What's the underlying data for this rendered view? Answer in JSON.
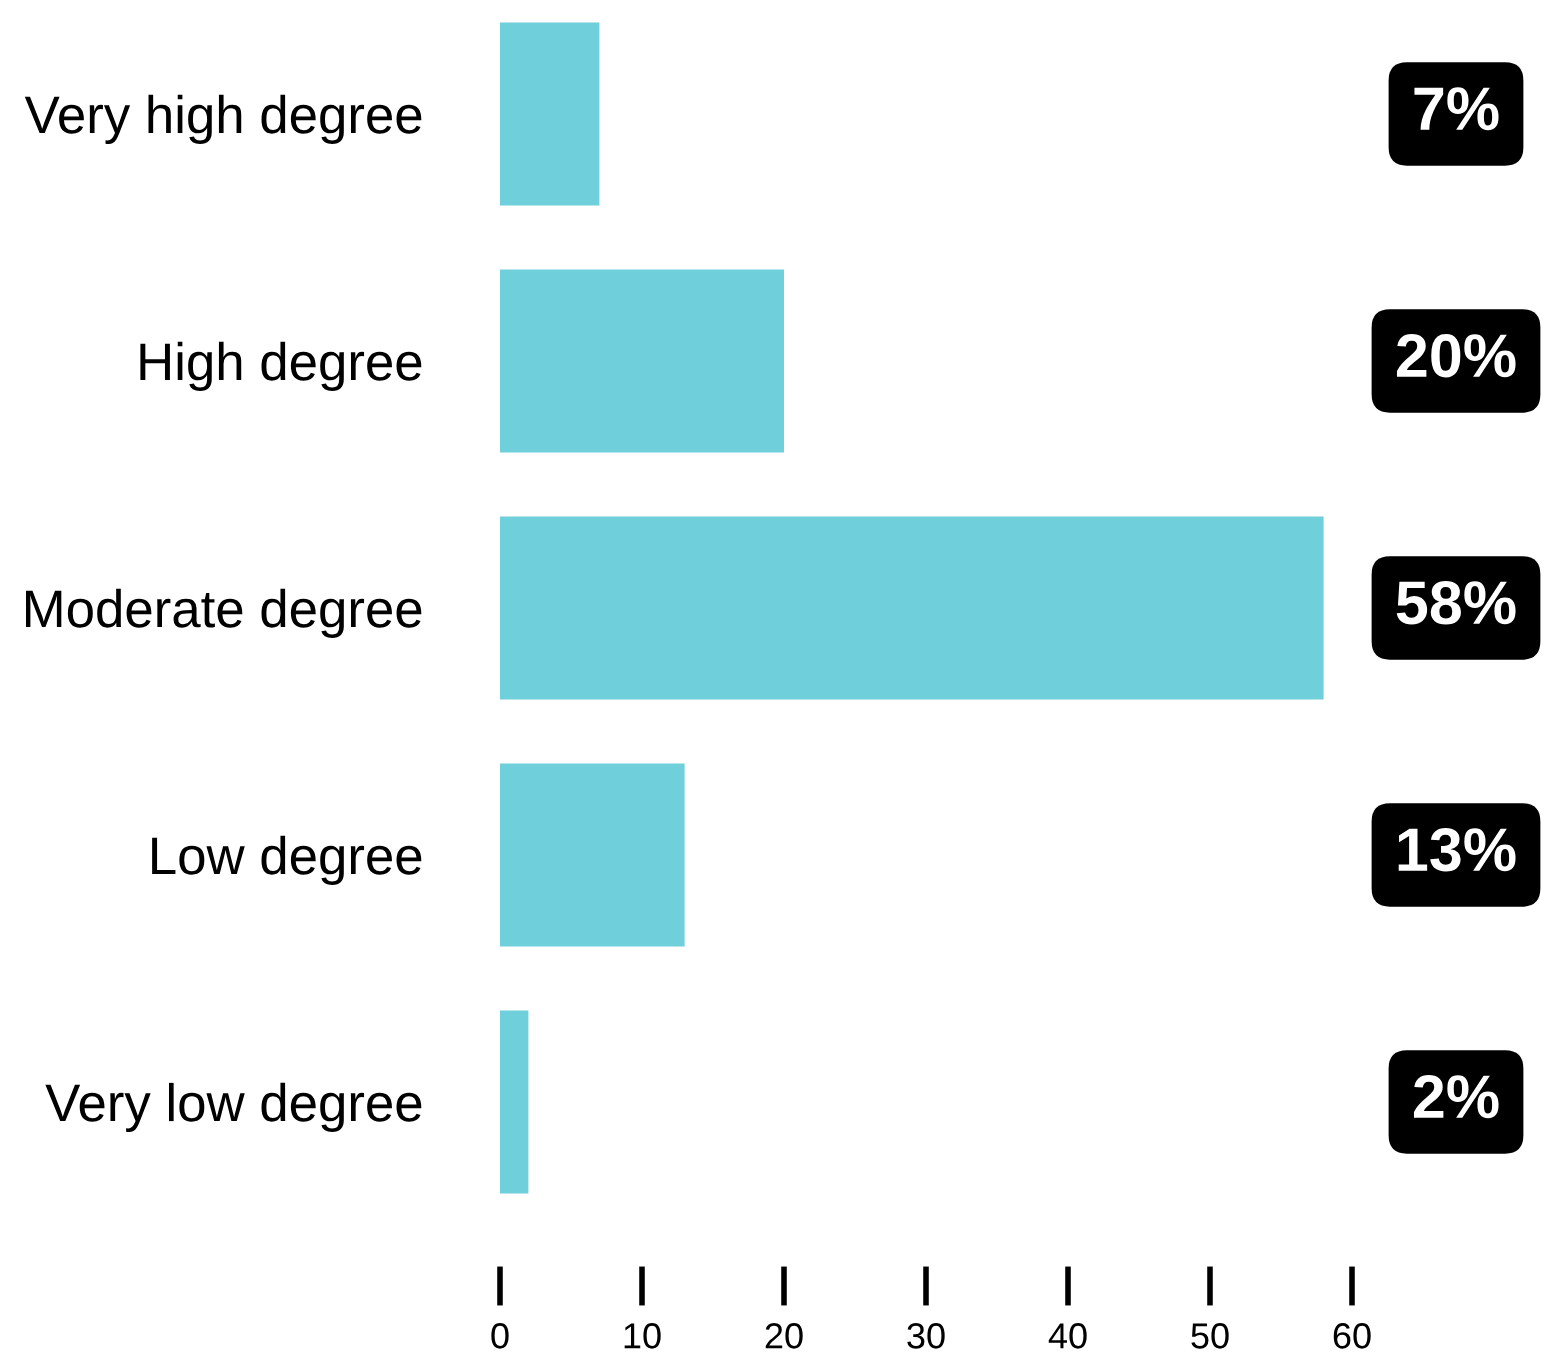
{
  "chart_data": {
    "type": "bar",
    "orientation": "horizontal",
    "categories": [
      "Very high degree",
      "High degree",
      "Moderate degree",
      "Low degree",
      "Very low degree"
    ],
    "values": [
      7,
      20,
      58,
      13,
      2
    ],
    "color": "#6fd0dc",
    "value_labels": [
      "7%",
      "20%",
      "58%",
      "13%",
      "2%"
    ],
    "xlim": [
      0,
      60
    ],
    "xticks": [
      0,
      10,
      20,
      30,
      40,
      50,
      60
    ],
    "grid": false
  }
}
